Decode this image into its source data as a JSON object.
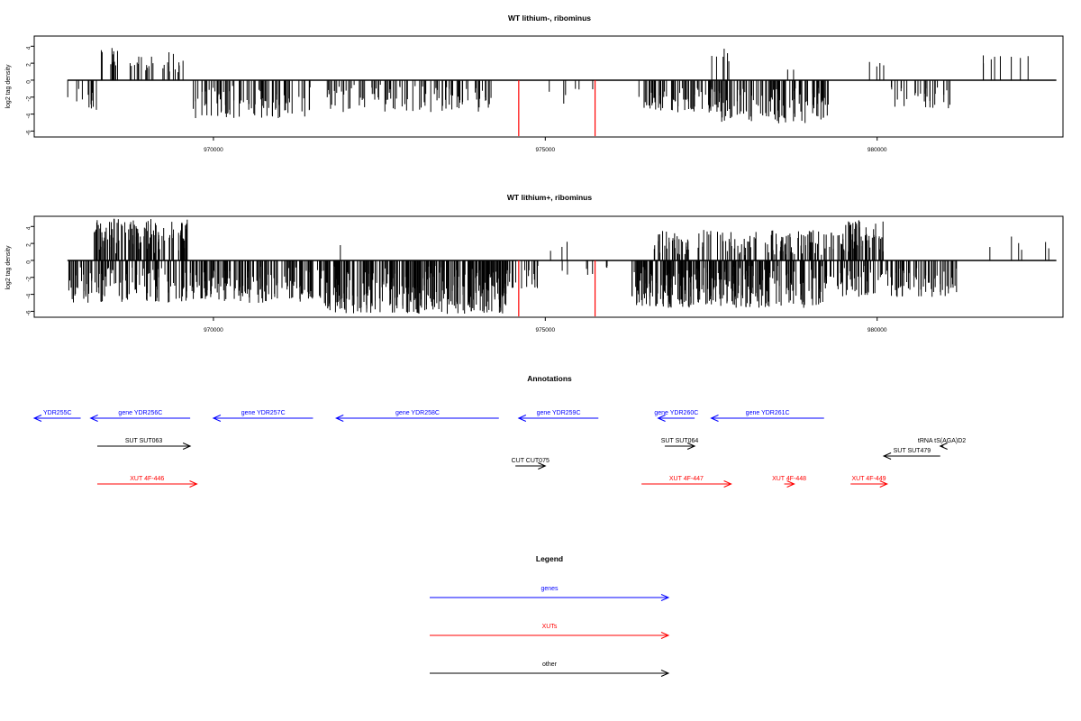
{
  "chart_data": [
    {
      "type": "bar",
      "title": "WT lithium-, ribominus",
      "ylabel": "log2 tag density",
      "xlim": [
        967300,
        982800
      ],
      "ylim": [
        -6.7,
        5.2
      ],
      "yticks": [
        4,
        2,
        0,
        -2,
        -4,
        -6
      ],
      "xticks": [
        970000,
        975000,
        980000
      ],
      "baseline": {
        "x_from": 967800,
        "x_to": 982700
      },
      "colors": {
        "bars": "#000000",
        "highlight": "#ff0000"
      },
      "highlights": [
        {
          "x": 974600,
          "y": -6.6
        },
        {
          "x": 975750,
          "y": -6.6
        }
      ],
      "upper_clusters": [
        {
          "from": 968250,
          "to": 968600,
          "count": 10,
          "min": 1.0,
          "max": 3.8
        },
        {
          "from": 968700,
          "to": 969100,
          "count": 14,
          "min": 0.8,
          "max": 3.0
        },
        {
          "from": 969100,
          "to": 969650,
          "count": 12,
          "min": 0.9,
          "max": 3.4
        },
        {
          "from": 977500,
          "to": 977900,
          "count": 6,
          "min": 1.3,
          "max": 3.8
        },
        {
          "from": 978650,
          "to": 978750,
          "count": 2,
          "min": 0.9,
          "max": 1.4
        },
        {
          "from": 979800,
          "to": 980100,
          "count": 4,
          "min": 0.9,
          "max": 2.4
        },
        {
          "from": 981500,
          "to": 982650,
          "count": 8,
          "min": 1.5,
          "max": 3.0
        }
      ],
      "lower_clusters": [
        {
          "from": 967800,
          "to": 968350,
          "count": 12,
          "min": 1.0,
          "max": 3.5
        },
        {
          "from": 969650,
          "to": 971500,
          "count": 85,
          "min": 0.6,
          "max": 4.5
        },
        {
          "from": 971700,
          "to": 974200,
          "count": 95,
          "min": 0.5,
          "max": 3.8
        },
        {
          "from": 975000,
          "to": 975850,
          "count": 6,
          "min": 1.0,
          "max": 2.8
        },
        {
          "from": 976400,
          "to": 977600,
          "count": 70,
          "min": 0.8,
          "max": 3.8
        },
        {
          "from": 977600,
          "to": 979300,
          "count": 110,
          "min": 0.8,
          "max": 5.2
        },
        {
          "from": 980200,
          "to": 981100,
          "count": 28,
          "min": 0.6,
          "max": 3.4
        }
      ]
    },
    {
      "type": "bar",
      "title": "WT lithium+, ribominus",
      "ylabel": "log2 tag density",
      "xlim": [
        967300,
        982800
      ],
      "ylim": [
        -6.7,
        5.2
      ],
      "yticks": [
        4,
        2,
        0,
        -2,
        -4,
        -6
      ],
      "xticks": [
        970000,
        975000,
        980000
      ],
      "baseline": {
        "x_from": 967800,
        "x_to": 982700
      },
      "colors": {
        "bars": "#000000",
        "highlight": "#ff0000"
      },
      "highlights": [
        {
          "x": 974600,
          "y": -6.6
        },
        {
          "x": 975750,
          "y": -6.6
        }
      ],
      "upper_clusters": [
        {
          "from": 968200,
          "to": 969650,
          "count": 120,
          "min": 0.8,
          "max": 5.0
        },
        {
          "from": 971900,
          "to": 971950,
          "count": 1,
          "min": 1.8,
          "max": 1.8
        },
        {
          "from": 974950,
          "to": 975350,
          "count": 3,
          "min": 1.0,
          "max": 2.6
        },
        {
          "from": 976600,
          "to": 979500,
          "count": 140,
          "min": 0.6,
          "max": 3.6
        },
        {
          "from": 979500,
          "to": 980100,
          "count": 55,
          "min": 1.0,
          "max": 5.0
        },
        {
          "from": 981500,
          "to": 982650,
          "count": 6,
          "min": 1.2,
          "max": 3.0
        }
      ],
      "lower_clusters": [
        {
          "from": 967800,
          "to": 969650,
          "count": 110,
          "min": 0.8,
          "max": 5.0
        },
        {
          "from": 969650,
          "to": 971650,
          "count": 150,
          "min": 0.6,
          "max": 5.0
        },
        {
          "from": 971650,
          "to": 974450,
          "count": 300,
          "min": 0.6,
          "max": 6.3
        },
        {
          "from": 974450,
          "to": 974900,
          "count": 18,
          "min": 0.6,
          "max": 3.4
        },
        {
          "from": 975250,
          "to": 975950,
          "count": 8,
          "min": 0.6,
          "max": 1.8
        },
        {
          "from": 976300,
          "to": 979300,
          "count": 280,
          "min": 0.6,
          "max": 5.6
        },
        {
          "from": 979300,
          "to": 981200,
          "count": 110,
          "min": 0.6,
          "max": 4.3
        }
      ]
    }
  ],
  "annotations": {
    "title": "Annotations",
    "xlim": [
      967300,
      982800
    ],
    "colors": {
      "gene": "#0000ff",
      "xut": "#ff0000",
      "other": "#000000"
    },
    "features": [
      {
        "label": "YDR255C",
        "kind": "gene",
        "start": 967300,
        "end": 968000,
        "strand": "-",
        "row": 1
      },
      {
        "label": "gene YDR256C",
        "kind": "gene",
        "start": 968150,
        "end": 969650,
        "strand": "-",
        "row": 1
      },
      {
        "label": "gene YDR257C",
        "kind": "gene",
        "start": 970000,
        "end": 971500,
        "strand": "-",
        "row": 1
      },
      {
        "label": "gene YDR258C",
        "kind": "gene",
        "start": 971850,
        "end": 974300,
        "strand": "-",
        "row": 1
      },
      {
        "label": "gene YDR259C",
        "kind": "gene",
        "start": 974600,
        "end": 975800,
        "strand": "-",
        "row": 1
      },
      {
        "label": "gene YDR260C",
        "kind": "gene",
        "start": 976700,
        "end": 977250,
        "strand": "-",
        "row": 1
      },
      {
        "label": "gene YDR261C",
        "kind": "gene",
        "start": 977500,
        "end": 979200,
        "strand": "-",
        "row": 1
      },
      {
        "label": "SUT SUT063",
        "kind": "other",
        "start": 968250,
        "end": 969650,
        "strand": "+",
        "row": 2
      },
      {
        "label": "SUT SUT064",
        "kind": "other",
        "start": 976800,
        "end": 977250,
        "strand": "+",
        "row": 2
      },
      {
        "label": "tRNA tS(AGA)D2",
        "kind": "other",
        "start": 980950,
        "end": 981000,
        "strand": "-",
        "row": 2
      },
      {
        "label": "SUT SUT479",
        "kind": "other",
        "start": 980100,
        "end": 980950,
        "strand": "-",
        "row": 3
      },
      {
        "label": "CUT CUT075",
        "kind": "other",
        "start": 974550,
        "end": 975000,
        "strand": "+",
        "row": 4
      },
      {
        "label": "XUT 4F-446",
        "kind": "xut",
        "start": 968250,
        "end": 969750,
        "strand": "+",
        "row": 5
      },
      {
        "label": "XUT 4F-447",
        "kind": "xut",
        "start": 976450,
        "end": 977800,
        "strand": "+",
        "row": 5
      },
      {
        "label": "XUT 4F-448",
        "kind": "xut",
        "start": 978600,
        "end": 978750,
        "strand": "+",
        "row": 5
      },
      {
        "label": "XUT 4F-449",
        "kind": "xut",
        "start": 979600,
        "end": 980150,
        "strand": "+",
        "row": 5
      }
    ]
  },
  "legend": {
    "title": "Legend",
    "items": [
      {
        "label": "genes",
        "kind": "gene"
      },
      {
        "label": "XUTs",
        "kind": "xut"
      },
      {
        "label": "other",
        "kind": "other"
      }
    ]
  }
}
